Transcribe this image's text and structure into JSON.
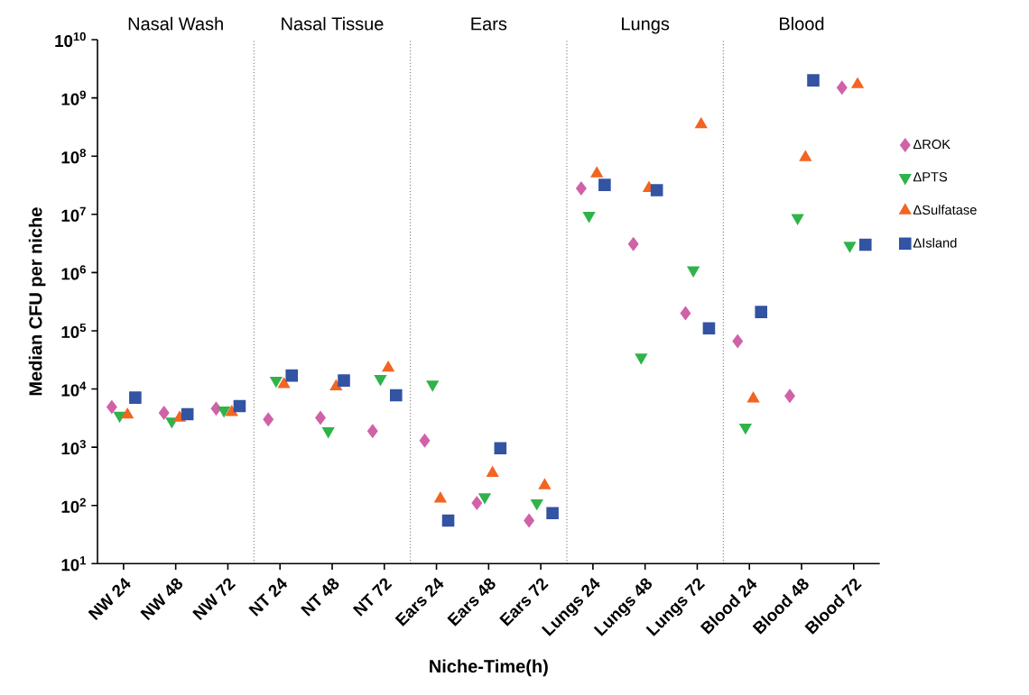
{
  "chart_data": {
    "type": "scatter",
    "xlabel": "Niche-Time(h)",
    "ylabel": "Median CFU per niche",
    "categories": [
      "NW 24",
      "NW 48",
      "NW 72",
      "NT 24",
      "NT 48",
      "NT 72",
      "Ears 24",
      "Ears 48",
      "Ears 72",
      "Lungs 24",
      "Lungs 48",
      "Lungs 72",
      "Blood 24",
      "Blood 48",
      "Blood 72"
    ],
    "log": "y",
    "ylim": [
      10,
      10000000000
    ],
    "yticks": [
      {
        "value": 10,
        "label": "10$^{1}$"
      },
      {
        "value": 100,
        "label": "10$^{2}$"
      },
      {
        "value": 1000,
        "label": "10$^{3}$"
      },
      {
        "value": 10000,
        "label": "10$^{4}$"
      },
      {
        "value": 100000,
        "label": "10$^{5}$"
      },
      {
        "value": 1000000,
        "label": "10$^{6}$"
      },
      {
        "value": 10000000,
        "label": "10$^{7}$"
      },
      {
        "value": 100000000,
        "label": "10$^{8}$"
      },
      {
        "value": 1000000000,
        "label": "10$^{9}$"
      },
      {
        "value": 10000000000,
        "label": "10$^{10}$"
      }
    ],
    "grid": false,
    "legend": "right",
    "series": [
      {
        "name": "ΔROK",
        "color": "#d062a8",
        "marker": "diamond",
        "values": [
          4900,
          3900,
          4600,
          3000,
          3200,
          1900,
          1300,
          110,
          55,
          28000000,
          3100000,
          200000,
          66000,
          7600,
          1500000000
        ]
      },
      {
        "name": "ΔPTS",
        "color": "#2fb34a",
        "marker": "triangle-down",
        "values": [
          3500,
          2800,
          4300,
          14000,
          1900,
          15000,
          12000,
          140,
          110,
          9500000,
          35000,
          1100000,
          2200,
          8700000,
          2900000
        ]
      },
      {
        "name": "ΔSulfatase",
        "color": "#f26522",
        "marker": "triangle",
        "values": [
          3600,
          3200,
          4000,
          12000,
          11000,
          23000,
          130,
          360,
          220,
          50000000,
          28000000,
          350000000,
          6800,
          95000000,
          1700000000
        ]
      },
      {
        "name": "ΔIsland",
        "color": "#3353a3",
        "marker": "square",
        "values": [
          7100,
          3700,
          5100,
          17000,
          14000,
          7800,
          55,
          960,
          74,
          32000000,
          26000000,
          110000,
          210000,
          2000000000,
          3000000
        ]
      }
    ],
    "annotations": [
      "Nasal Wash",
      "Nasal Tissue",
      "Ears",
      "Lungs",
      "Blood"
    ]
  }
}
